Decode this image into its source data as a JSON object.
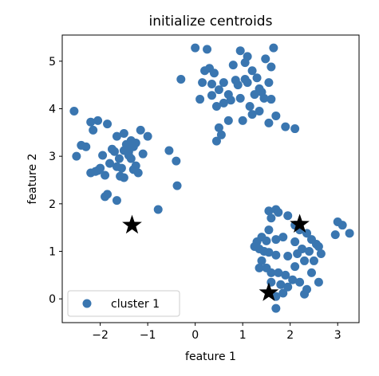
{
  "chart_data": {
    "type": "scatter",
    "title": "initialize centroids",
    "xlabel": "feature 1",
    "ylabel": "feature 2",
    "xlim": [
      -2.8,
      3.45
    ],
    "ylim": [
      -0.5,
      5.55
    ],
    "xticks": [
      -2,
      -1,
      0,
      1,
      2,
      3
    ],
    "yticks": [
      0,
      1,
      2,
      3,
      4,
      5
    ],
    "grid": false,
    "legend_position": "lower-left",
    "series": [
      {
        "name": "cluster 1",
        "marker": "circle",
        "color": "#3a76b0",
        "points": [
          [
            -2.55,
            3.95
          ],
          [
            -2.3,
            3.2
          ],
          [
            -2.15,
            3.55
          ],
          [
            -2.05,
            3.75
          ],
          [
            -1.85,
            3.68
          ],
          [
            -2.2,
            3.72
          ],
          [
            -1.75,
            3.15
          ],
          [
            -1.95,
            3.02
          ],
          [
            -1.65,
            3.42
          ],
          [
            -1.5,
            3.48
          ],
          [
            -1.3,
            3.2
          ],
          [
            -1.15,
            3.55
          ],
          [
            -1.0,
            3.42
          ],
          [
            -1.4,
            3.02
          ],
          [
            -1.6,
            2.95
          ],
          [
            -1.8,
            2.85
          ],
          [
            -2.0,
            2.75
          ],
          [
            -2.2,
            2.65
          ],
          [
            -1.9,
            2.6
          ],
          [
            -1.55,
            2.75
          ],
          [
            -1.35,
            2.95
          ],
          [
            -1.25,
            2.8
          ],
          [
            -1.1,
            3.05
          ],
          [
            -1.45,
            3.25
          ],
          [
            -1.7,
            3.1
          ],
          [
            -2.5,
            3.0
          ],
          [
            -2.1,
            2.68
          ],
          [
            -1.58,
            2.58
          ],
          [
            -1.3,
            2.72
          ],
          [
            -1.2,
            2.65
          ],
          [
            -1.5,
            3.12
          ],
          [
            -1.4,
            3.1
          ],
          [
            -1.65,
            2.78
          ],
          [
            -1.85,
            2.2
          ],
          [
            -1.9,
            2.15
          ],
          [
            -1.65,
            2.07
          ],
          [
            -1.5,
            2.55
          ],
          [
            -0.78,
            1.88
          ],
          [
            -0.55,
            3.12
          ],
          [
            -0.4,
            2.9
          ],
          [
            -0.38,
            2.38
          ],
          [
            -1.25,
            3.28
          ],
          [
            -1.35,
            3.33
          ],
          [
            -2.4,
            3.23
          ],
          [
            -2.05,
            2.7
          ],
          [
            0.0,
            5.28
          ],
          [
            0.25,
            5.25
          ],
          [
            0.2,
            4.8
          ],
          [
            0.3,
            4.85
          ],
          [
            0.4,
            4.75
          ],
          [
            0.6,
            4.55
          ],
          [
            0.8,
            4.92
          ],
          [
            0.95,
            5.22
          ],
          [
            1.05,
            4.97
          ],
          [
            1.2,
            4.8
          ],
          [
            1.3,
            4.65
          ],
          [
            1.48,
            5.05
          ],
          [
            1.6,
            4.88
          ],
          [
            1.65,
            5.28
          ],
          [
            1.55,
            4.55
          ],
          [
            1.35,
            4.42
          ],
          [
            1.25,
            4.3
          ],
          [
            1.1,
            4.55
          ],
          [
            0.9,
            4.5
          ],
          [
            0.7,
            4.3
          ],
          [
            0.5,
            4.4
          ],
          [
            0.35,
            4.52
          ],
          [
            0.15,
            4.55
          ],
          [
            0.1,
            4.2
          ],
          [
            0.45,
            4.05
          ],
          [
            0.6,
            4.12
          ],
          [
            0.75,
            4.18
          ],
          [
            0.95,
            4.22
          ],
          [
            1.15,
            4.05
          ],
          [
            1.35,
            3.95
          ],
          [
            1.45,
            4.22
          ],
          [
            1.6,
            4.2
          ],
          [
            1.2,
            3.88
          ],
          [
            1.0,
            3.75
          ],
          [
            0.7,
            3.75
          ],
          [
            0.5,
            3.6
          ],
          [
            0.45,
            3.32
          ],
          [
            0.55,
            3.45
          ],
          [
            1.55,
            3.7
          ],
          [
            1.9,
            3.62
          ],
          [
            2.1,
            3.58
          ],
          [
            1.7,
            3.85
          ],
          [
            1.4,
            4.35
          ],
          [
            1.05,
            4.62
          ],
          [
            0.85,
            4.6
          ],
          [
            -0.3,
            4.62
          ],
          [
            0.35,
            4.28
          ],
          [
            1.1,
            5.1
          ],
          [
            1.55,
            1.85
          ],
          [
            1.7,
            1.88
          ],
          [
            1.75,
            1.82
          ],
          [
            1.6,
            1.7
          ],
          [
            1.95,
            1.75
          ],
          [
            2.1,
            1.55
          ],
          [
            1.55,
            1.45
          ],
          [
            1.4,
            1.3
          ],
          [
            1.3,
            1.2
          ],
          [
            1.5,
            1.22
          ],
          [
            1.7,
            1.25
          ],
          [
            1.85,
            1.3
          ],
          [
            2.1,
            1.2
          ],
          [
            2.2,
            1.45
          ],
          [
            2.35,
            1.38
          ],
          [
            2.45,
            1.25
          ],
          [
            2.55,
            1.15
          ],
          [
            2.6,
            1.1
          ],
          [
            2.4,
            1.0
          ],
          [
            2.25,
            1.05
          ],
          [
            2.15,
            0.95
          ],
          [
            1.95,
            0.9
          ],
          [
            1.7,
            0.92
          ],
          [
            1.55,
            0.98
          ],
          [
            1.35,
            1.05
          ],
          [
            1.25,
            1.1
          ],
          [
            1.4,
            0.8
          ],
          [
            1.5,
            0.65
          ],
          [
            1.35,
            0.65
          ],
          [
            1.6,
            0.55
          ],
          [
            1.75,
            0.55
          ],
          [
            1.9,
            0.5
          ],
          [
            2.05,
            0.4
          ],
          [
            2.2,
            0.35
          ],
          [
            2.45,
            0.55
          ],
          [
            2.6,
            0.35
          ],
          [
            2.3,
            0.8
          ],
          [
            2.5,
            0.8
          ],
          [
            2.65,
            0.95
          ],
          [
            1.8,
            0.3
          ],
          [
            1.95,
            0.25
          ],
          [
            1.6,
            0.35
          ],
          [
            1.7,
            0.05
          ],
          [
            1.85,
            0.12
          ],
          [
            2.3,
            0.1
          ],
          [
            2.35,
            0.2
          ],
          [
            1.7,
            -0.2
          ],
          [
            3.0,
            1.62
          ],
          [
            3.1,
            1.55
          ],
          [
            2.95,
            1.35
          ],
          [
            3.25,
            1.38
          ],
          [
            2.1,
            0.68
          ],
          [
            1.45,
            1.0
          ]
        ]
      },
      {
        "name": "",
        "marker": "star",
        "color": "#000000",
        "points": [
          [
            -1.33,
            1.55
          ],
          [
            2.2,
            1.57
          ],
          [
            1.55,
            0.13
          ]
        ]
      }
    ]
  }
}
